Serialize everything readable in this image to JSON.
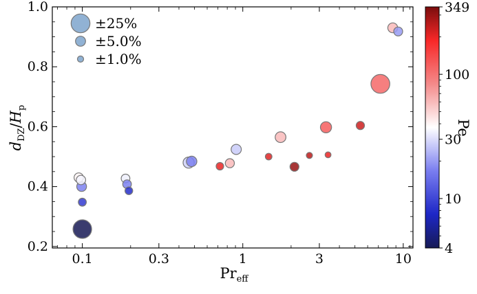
{
  "chart_data": {
    "type": "scatter",
    "xlabel": "Pr_eff",
    "ylabel": "d_DZ / H_p",
    "x_scale": "log",
    "xlim": [
      0.065,
      11.5
    ],
    "ylim": [
      0.195,
      1.0
    ],
    "x_ticks": [
      {
        "value": 0.1,
        "label": "0.1"
      },
      {
        "value": 0.3,
        "label": "0.3"
      },
      {
        "value": 1,
        "label": "1"
      },
      {
        "value": 3,
        "label": "3"
      },
      {
        "value": 10,
        "label": "10"
      }
    ],
    "y_ticks": [
      {
        "value": 0.2,
        "label": "0.2"
      },
      {
        "value": 0.4,
        "label": "0.4"
      },
      {
        "value": 0.6,
        "label": "0.6"
      },
      {
        "value": 0.8,
        "label": "0.8"
      },
      {
        "value": 1.0,
        "label": "1.0"
      }
    ],
    "colorbar": {
      "label": "Pe",
      "scale": "log",
      "range": [
        4,
        349
      ],
      "ticks": [
        {
          "value": 4,
          "label": "4"
        },
        {
          "value": 10,
          "label": "10"
        },
        {
          "value": 30,
          "label": "30"
        },
        {
          "value": 100,
          "label": "100"
        },
        {
          "value": 349,
          "label": "349"
        }
      ]
    },
    "size_legend": {
      "placement": "top-left",
      "entries": [
        {
          "label": "±25%",
          "error_pct": 25
        },
        {
          "label": "±5.0%",
          "error_pct": 5
        },
        {
          "label": "±1.0%",
          "error_pct": 1
        }
      ]
    },
    "points": [
      {
        "x": 0.095,
        "y": 0.43,
        "pe": 40,
        "error_pct": 4
      },
      {
        "x": 0.098,
        "y": 0.422,
        "pe": 35,
        "error_pct": 4
      },
      {
        "x": 0.099,
        "y": 0.4,
        "pe": 17,
        "error_pct": 4.5
      },
      {
        "x": 0.1,
        "y": 0.348,
        "pe": 9,
        "error_pct": 2.5
      },
      {
        "x": 0.1,
        "y": 0.258,
        "pe": 4,
        "error_pct": 24
      },
      {
        "x": 0.186,
        "y": 0.427,
        "pe": 34,
        "error_pct": 3.2
      },
      {
        "x": 0.19,
        "y": 0.408,
        "pe": 17,
        "error_pct": 3.2
      },
      {
        "x": 0.195,
        "y": 0.386,
        "pe": 8,
        "error_pct": 2.2
      },
      {
        "x": 0.46,
        "y": 0.48,
        "pe": 28,
        "error_pct": 6.5
      },
      {
        "x": 0.48,
        "y": 0.484,
        "pe": 17,
        "error_pct": 5.5
      },
      {
        "x": 0.72,
        "y": 0.468,
        "pe": 200,
        "error_pct": 2
      },
      {
        "x": 0.83,
        "y": 0.478,
        "pe": 60,
        "error_pct": 3.6
      },
      {
        "x": 0.91,
        "y": 0.524,
        "pe": 27,
        "error_pct": 5.2
      },
      {
        "x": 1.45,
        "y": 0.5,
        "pe": 210,
        "error_pct": 1.3
      },
      {
        "x": 1.72,
        "y": 0.565,
        "pe": 60,
        "error_pct": 6
      },
      {
        "x": 2.1,
        "y": 0.466,
        "pe": 300,
        "error_pct": 3.5
      },
      {
        "x": 2.6,
        "y": 0.504,
        "pe": 250,
        "error_pct": 1
      },
      {
        "x": 3.3,
        "y": 0.598,
        "pe": 120,
        "error_pct": 6.5
      },
      {
        "x": 3.4,
        "y": 0.506,
        "pe": 200,
        "error_pct": 0.8
      },
      {
        "x": 5.4,
        "y": 0.604,
        "pe": 230,
        "error_pct": 2.8
      },
      {
        "x": 7.2,
        "y": 0.743,
        "pe": 110,
        "error_pct": 25
      },
      {
        "x": 8.6,
        "y": 0.93,
        "pe": 60,
        "error_pct": 4.8
      },
      {
        "x": 9.3,
        "y": 0.918,
        "pe": 20,
        "error_pct": 3.5
      }
    ]
  }
}
